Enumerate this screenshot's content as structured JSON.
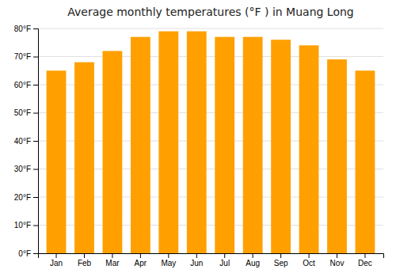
{
  "chart_data": {
    "type": "bar",
    "title": "Average monthly temperatures (°F ) in Muang Long",
    "categories": [
      "Jan",
      "Feb",
      "Mar",
      "Apr",
      "May",
      "Jun",
      "Jul",
      "Aug",
      "Sep",
      "Oct",
      "Nov",
      "Dec"
    ],
    "values": [
      65,
      68,
      72,
      77,
      79,
      79,
      77,
      77,
      76,
      74,
      69,
      65
    ],
    "color": "#FFA000",
    "ylim": [
      0,
      80
    ],
    "yticks": [
      {
        "value": 0,
        "label": "0°F"
      },
      {
        "value": 10,
        "label": "10°F"
      },
      {
        "value": 20,
        "label": "20°F"
      },
      {
        "value": 30,
        "label": "30°F"
      },
      {
        "value": 40,
        "label": "40°F"
      },
      {
        "value": 50,
        "label": "50°F"
      },
      {
        "value": 60,
        "label": "60°F"
      },
      {
        "value": 70,
        "label": "70°F"
      },
      {
        "value": 80,
        "label": "80°F"
      }
    ],
    "grid": true
  }
}
